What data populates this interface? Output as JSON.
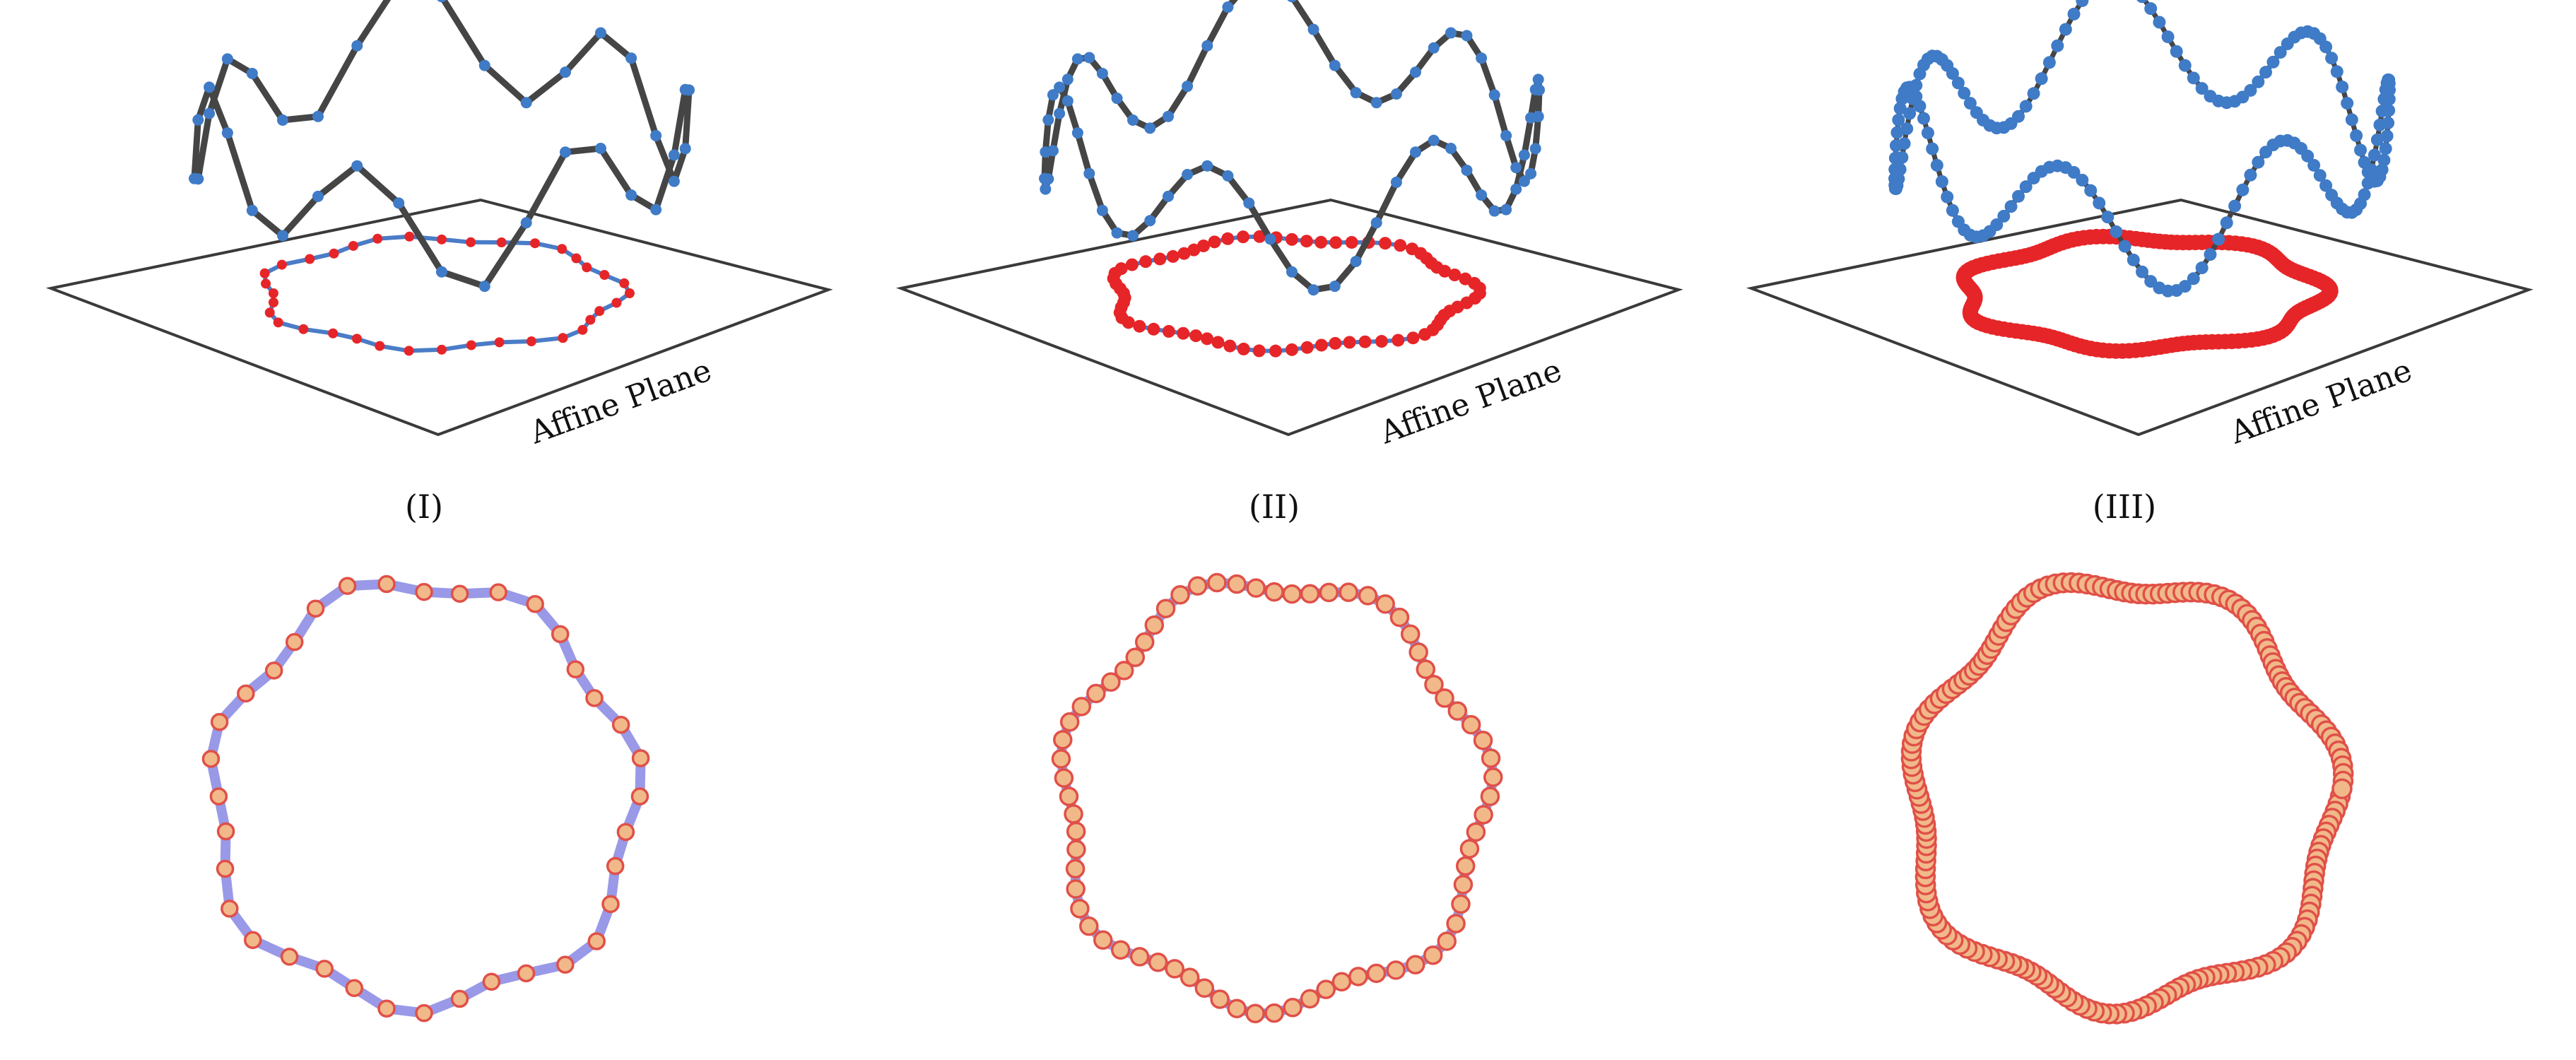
{
  "panels": [
    {
      "label": "(I)",
      "plane_label": "Affine Plane",
      "n": 36
    },
    {
      "label": "(II)",
      "plane_label": "Affine Plane",
      "n": 72
    },
    {
      "label": "(III)",
      "plane_label": "Affine Plane",
      "n": 180
    }
  ],
  "colors": {
    "plane_edge": "#3a3a3a",
    "curve_3d": "#454545",
    "point_3d": "#3f7bc6",
    "proj_line": "#4a7cc7",
    "proj_point": "#e62528",
    "bottom_line": "#8e8ee6",
    "bottom_fill": "#f1b98a",
    "bottom_edge": "#e05048"
  }
}
